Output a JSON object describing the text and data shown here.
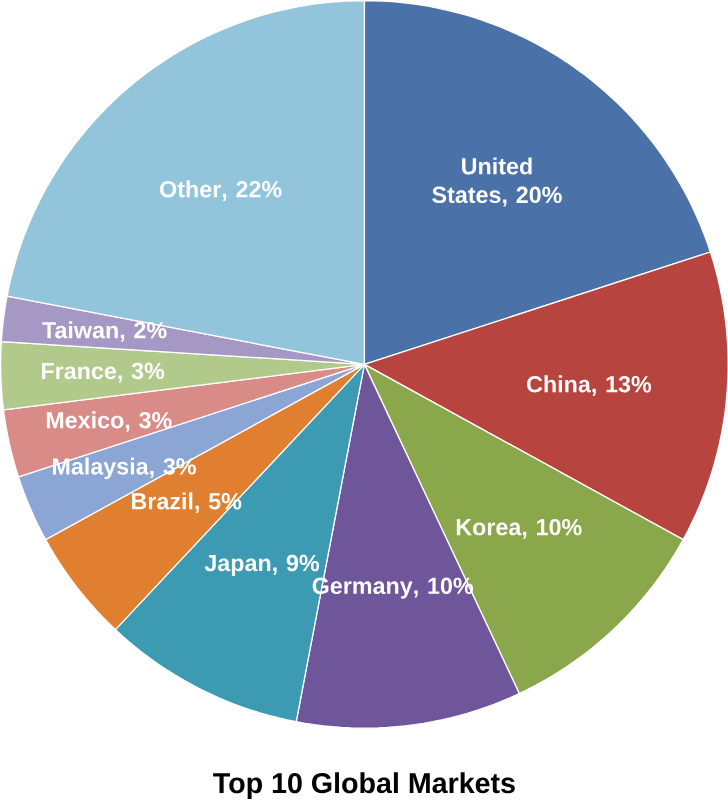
{
  "chart_data": {
    "type": "pie",
    "title": "Top 10 Global Markets",
    "categories": [
      "United States",
      "China",
      "Korea",
      "Germany",
      "Japan",
      "Brazil",
      "Malaysia",
      "Mexico",
      "France",
      "Taiwan",
      "Other"
    ],
    "values": [
      20,
      13,
      10,
      10,
      9,
      5,
      3,
      3,
      3,
      2,
      22
    ],
    "value_labels": [
      ", 20%",
      ", 13%",
      ", 10%",
      ", 10%",
      ", 9%",
      ", 5%",
      ", 3%",
      ", 3%",
      ", 3%",
      ", 2%",
      ", 22%"
    ],
    "colors": [
      "#4a72a8",
      "#b8443f",
      "#8aa84b",
      "#6f559a",
      "#3c9ab2",
      "#e07f30",
      "#8ba5d4",
      "#d98b88",
      "#b1c98b",
      "#a698c4",
      "#92c4db"
    ],
    "legend": false
  }
}
